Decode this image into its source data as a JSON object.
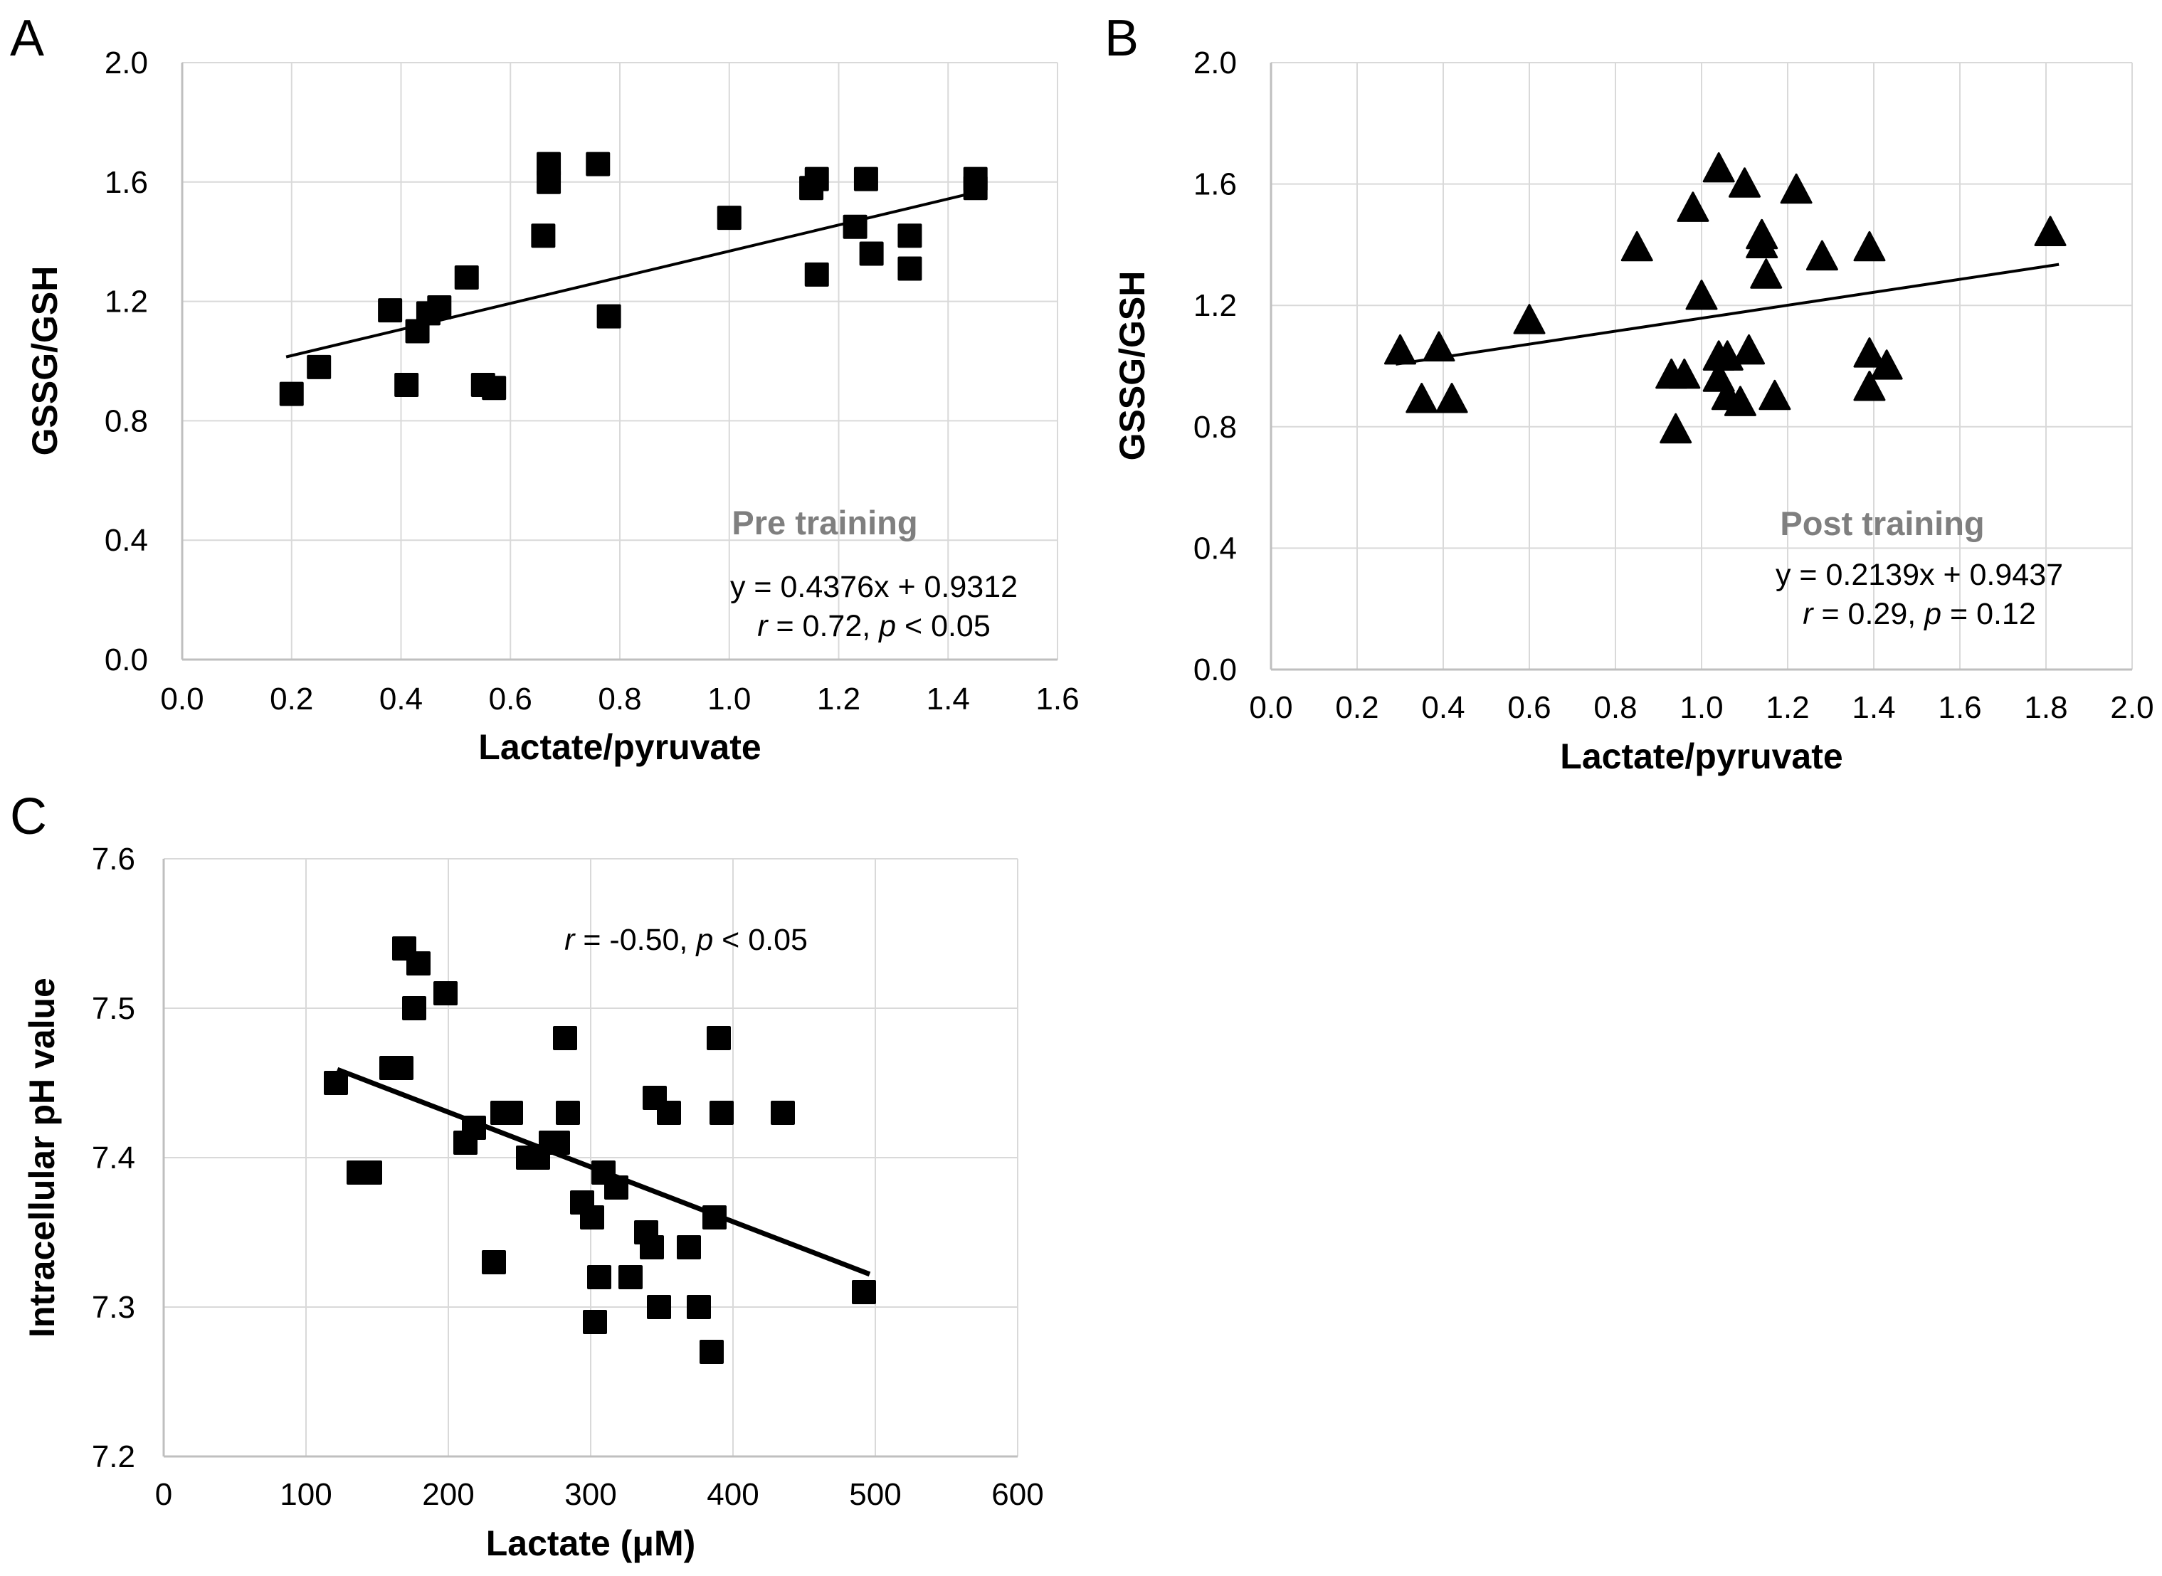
{
  "figure": {
    "background": "#ffffff",
    "marker_color": "#000000",
    "gridline_color": "#d9d9d9",
    "axis_line_color": "#bfbfbf",
    "annotation_gray": "#7f7f7f",
    "text_color": "#000000"
  },
  "chart_data": [
    {
      "panel": "A",
      "type": "scatter",
      "marker": "square",
      "series_label": "Pre training",
      "xlabel": "Lactate/pyruvate",
      "ylabel": "GSSG/GSH",
      "xlim": [
        0.0,
        1.6
      ],
      "ylim": [
        0.0,
        2.0
      ],
      "xticks": [
        0.0,
        0.2,
        0.4,
        0.6,
        0.8,
        1.0,
        1.2,
        1.4,
        1.6
      ],
      "xtick_labels": [
        "0.0",
        "0.2",
        "0.4",
        "0.6",
        "0.8",
        "1.0",
        "1.2",
        "1.4",
        "1.6"
      ],
      "yticks": [
        0.0,
        0.4,
        0.8,
        1.2,
        1.6,
        2.0
      ],
      "ytick_labels": [
        "0.0",
        "0.4",
        "0.8",
        "1.2",
        "1.6",
        "2.0"
      ],
      "grid": true,
      "points": [
        [
          0.2,
          0.89
        ],
        [
          0.25,
          0.98
        ],
        [
          0.38,
          1.17
        ],
        [
          0.41,
          0.92
        ],
        [
          0.43,
          1.1
        ],
        [
          0.45,
          1.16
        ],
        [
          0.47,
          1.18
        ],
        [
          0.52,
          1.28
        ],
        [
          0.55,
          0.92
        ],
        [
          0.57,
          0.91
        ],
        [
          0.66,
          1.42
        ],
        [
          0.67,
          1.66
        ],
        [
          0.67,
          1.6
        ],
        [
          0.76,
          1.66
        ],
        [
          0.78,
          1.15
        ],
        [
          1.0,
          1.48
        ],
        [
          1.15,
          1.58
        ],
        [
          1.16,
          1.61
        ],
        [
          1.16,
          1.29
        ],
        [
          1.23,
          1.45
        ],
        [
          1.25,
          1.61
        ],
        [
          1.26,
          1.36
        ],
        [
          1.33,
          1.42
        ],
        [
          1.33,
          1.31
        ],
        [
          1.45,
          1.61
        ],
        [
          1.45,
          1.58
        ]
      ],
      "trendline": {
        "x1": 0.19,
        "y1": 1.014,
        "x2": 1.47,
        "y2": 1.574
      },
      "annotations": [
        {
          "name": "series-label",
          "bold": true,
          "color": "#7f7f7f",
          "size": 47,
          "segments": [
            {
              "text": "Pre training"
            }
          ]
        },
        {
          "name": "equation-text",
          "size": 43,
          "segments": [
            {
              "text": "y = 0.4376x + 0.9312"
            }
          ]
        },
        {
          "name": "stats-text",
          "size": 43,
          "segments": [
            {
              "text": "r",
              "italic": true
            },
            {
              "text": " = 0.72,  "
            },
            {
              "text": "p",
              "italic": true
            },
            {
              "text": " < 0.05"
            }
          ]
        }
      ]
    },
    {
      "panel": "B",
      "type": "scatter",
      "marker": "triangle",
      "series_label": "Post training",
      "xlabel": "Lactate/pyruvate",
      "ylabel": "GSSG/GSH",
      "xlim": [
        0.0,
        2.0
      ],
      "ylim": [
        0.0,
        2.0
      ],
      "xticks": [
        0.0,
        0.2,
        0.4,
        0.6,
        0.8,
        1.0,
        1.2,
        1.4,
        1.6,
        1.8,
        2.0
      ],
      "xtick_labels": [
        "0.0",
        "0.2",
        "0.4",
        "0.6",
        "0.8",
        "1.0",
        "1.2",
        "1.4",
        "1.6",
        "1.8",
        "2.0"
      ],
      "yticks": [
        0.0,
        0.4,
        0.8,
        1.2,
        1.6,
        2.0
      ],
      "ytick_labels": [
        "0.0",
        "0.4",
        "0.8",
        "1.2",
        "1.6",
        "2.0"
      ],
      "grid": true,
      "points": [
        [
          0.3,
          1.05
        ],
        [
          0.35,
          0.89
        ],
        [
          0.39,
          1.06
        ],
        [
          0.42,
          0.89
        ],
        [
          0.6,
          1.15
        ],
        [
          0.85,
          1.39
        ],
        [
          0.93,
          0.97
        ],
        [
          0.96,
          0.97
        ],
        [
          0.94,
          0.79
        ],
        [
          0.98,
          1.52
        ],
        [
          1.0,
          1.23
        ],
        [
          1.04,
          1.65
        ],
        [
          1.1,
          1.6
        ],
        [
          1.22,
          1.58
        ],
        [
          1.04,
          1.03
        ],
        [
          1.06,
          1.03
        ],
        [
          1.11,
          1.05
        ],
        [
          1.04,
          0.96
        ],
        [
          1.06,
          0.9
        ],
        [
          1.09,
          0.88
        ],
        [
          1.17,
          0.9
        ],
        [
          1.14,
          1.43
        ],
        [
          1.14,
          1.4
        ],
        [
          1.15,
          1.3
        ],
        [
          1.28,
          1.36
        ],
        [
          1.39,
          1.39
        ],
        [
          1.39,
          1.04
        ],
        [
          1.43,
          1.0
        ],
        [
          1.39,
          0.93
        ],
        [
          1.81,
          1.44
        ]
      ],
      "trendline": {
        "x1": 0.29,
        "y1": 1.006,
        "x2": 1.83,
        "y2": 1.335
      },
      "annotations": [
        {
          "name": "series-label",
          "bold": true,
          "color": "#7f7f7f",
          "size": 47,
          "segments": [
            {
              "text": "Post training"
            }
          ]
        },
        {
          "name": "equation-text",
          "size": 43,
          "segments": [
            {
              "text": "y = 0.2139x + 0.9437"
            }
          ]
        },
        {
          "name": "stats-text",
          "size": 43,
          "segments": [
            {
              "text": "r",
              "italic": true
            },
            {
              "text": " = 0.29, "
            },
            {
              "text": "p",
              "italic": true
            },
            {
              "text": " = 0.12"
            }
          ]
        }
      ]
    },
    {
      "panel": "C",
      "type": "scatter",
      "marker": "square",
      "series_label": "",
      "xlabel": "Lactate (μM)",
      "ylabel": "Intracellular pH value",
      "xlim": [
        0,
        600
      ],
      "ylim": [
        7.2,
        7.6
      ],
      "xticks": [
        0,
        100,
        200,
        300,
        400,
        500,
        600
      ],
      "xtick_labels": [
        "0",
        "100",
        "200",
        "300",
        "400",
        "500",
        "600"
      ],
      "yticks": [
        7.2,
        7.3,
        7.4,
        7.5,
        7.6
      ],
      "ytick_labels": [
        "7.2",
        "7.3",
        "7.4",
        "7.5",
        "7.6"
      ],
      "grid": true,
      "points": [
        [
          121,
          7.45
        ],
        [
          137,
          7.39
        ],
        [
          145,
          7.39
        ],
        [
          160,
          7.46
        ],
        [
          167,
          7.46
        ],
        [
          169,
          7.54
        ],
        [
          176,
          7.5
        ],
        [
          179,
          7.53
        ],
        [
          198,
          7.51
        ],
        [
          212,
          7.41
        ],
        [
          218,
          7.42
        ],
        [
          232,
          7.33
        ],
        [
          238,
          7.43
        ],
        [
          244,
          7.43
        ],
        [
          256,
          7.4
        ],
        [
          263,
          7.4
        ],
        [
          272,
          7.41
        ],
        [
          277,
          7.41
        ],
        [
          282,
          7.48
        ],
        [
          284,
          7.43
        ],
        [
          294,
          7.37
        ],
        [
          301,
          7.36
        ],
        [
          303,
          7.29
        ],
        [
          306,
          7.32
        ],
        [
          309,
          7.39
        ],
        [
          318,
          7.38
        ],
        [
          328,
          7.32
        ],
        [
          339,
          7.35
        ],
        [
          343,
          7.34
        ],
        [
          345,
          7.44
        ],
        [
          348,
          7.3
        ],
        [
          355,
          7.43
        ],
        [
          369,
          7.34
        ],
        [
          376,
          7.3
        ],
        [
          385,
          7.27
        ],
        [
          387,
          7.36
        ],
        [
          390,
          7.48
        ],
        [
          392,
          7.43
        ],
        [
          435,
          7.43
        ],
        [
          492,
          7.31
        ]
      ],
      "trendline": {
        "x1": 122,
        "y1": 7.459,
        "x2": 496,
        "y2": 7.322
      },
      "annotations": [
        {
          "name": "stats-text",
          "size": 43,
          "segments": [
            {
              "text": "r",
              "italic": true
            },
            {
              "text": " = -0.50, "
            },
            {
              "text": "p",
              "italic": true
            },
            {
              "text": " < 0.05"
            }
          ]
        }
      ]
    }
  ]
}
